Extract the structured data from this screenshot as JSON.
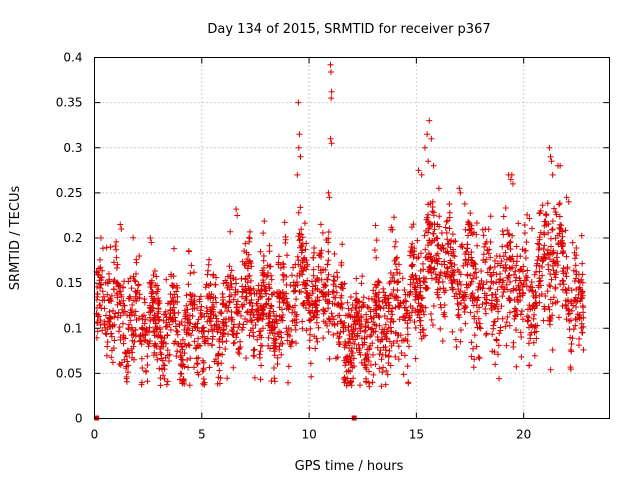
{
  "chart_data": {
    "type": "scatter",
    "title": "Day 134 of 2015, SRMTID for receiver p367",
    "xlabel": "GPS time / hours",
    "ylabel": "SRMTID / TECUs",
    "xlim": [
      0,
      24
    ],
    "ylim": [
      0,
      0.4
    ],
    "xticks": [
      0,
      5,
      10,
      15,
      20
    ],
    "yticks": [
      0,
      0.05,
      0.1,
      0.15,
      0.2,
      0.25,
      0.3,
      0.35,
      0.4
    ],
    "xtick_labels": [
      "0",
      "5",
      "10",
      "15",
      "20"
    ],
    "ytick_labels": [
      "0",
      "0.05",
      "0.1",
      "0.15",
      "0.2",
      "0.25",
      "0.3",
      "0.35",
      "0.4"
    ],
    "grid": true,
    "marker": "plus",
    "color": "#dd0000",
    "zero_markers": [
      0.1,
      12.1
    ],
    "trend": [
      [
        0.0,
        0.12
      ],
      [
        0.5,
        0.13
      ],
      [
        1.0,
        0.12
      ],
      [
        2.0,
        0.11
      ],
      [
        3.0,
        0.1
      ],
      [
        4.0,
        0.1
      ],
      [
        5.0,
        0.1
      ],
      [
        6.0,
        0.11
      ],
      [
        7.0,
        0.13
      ],
      [
        8.0,
        0.12
      ],
      [
        9.0,
        0.12
      ],
      [
        9.5,
        0.16
      ],
      [
        10.0,
        0.13
      ],
      [
        11.0,
        0.14
      ],
      [
        11.5,
        0.1
      ],
      [
        12.0,
        0.09
      ],
      [
        13.0,
        0.1
      ],
      [
        14.0,
        0.11
      ],
      [
        15.0,
        0.14
      ],
      [
        15.5,
        0.17
      ],
      [
        16.0,
        0.18
      ],
      [
        17.0,
        0.16
      ],
      [
        18.0,
        0.15
      ],
      [
        19.0,
        0.14
      ],
      [
        19.5,
        0.16
      ],
      [
        20.0,
        0.13
      ],
      [
        21.0,
        0.17
      ],
      [
        21.5,
        0.18
      ],
      [
        22.0,
        0.15
      ],
      [
        22.5,
        0.12
      ],
      [
        22.8,
        0.1
      ]
    ],
    "spread": [
      [
        0.0,
        0.045
      ],
      [
        1.0,
        0.05
      ],
      [
        3.0,
        0.045
      ],
      [
        6.0,
        0.05
      ],
      [
        8.0,
        0.05
      ],
      [
        10.0,
        0.05
      ],
      [
        12.0,
        0.05
      ],
      [
        15.0,
        0.055
      ],
      [
        17.0,
        0.06
      ],
      [
        19.0,
        0.06
      ],
      [
        21.0,
        0.065
      ],
      [
        22.8,
        0.05
      ]
    ],
    "peaks": [
      [
        9.5,
        0.35
      ],
      [
        9.52,
        0.3
      ],
      [
        9.45,
        0.27
      ],
      [
        9.55,
        0.315
      ],
      [
        9.6,
        0.29
      ],
      [
        11.0,
        0.392
      ],
      [
        11.02,
        0.384
      ],
      [
        11.05,
        0.362
      ],
      [
        11.03,
        0.355
      ],
      [
        11.0,
        0.31
      ],
      [
        11.05,
        0.305
      ],
      [
        10.9,
        0.25
      ],
      [
        10.95,
        0.245
      ],
      [
        15.6,
        0.33
      ],
      [
        15.5,
        0.315
      ],
      [
        15.7,
        0.31
      ],
      [
        15.4,
        0.3
      ],
      [
        15.8,
        0.28
      ],
      [
        15.55,
        0.285
      ],
      [
        15.1,
        0.275
      ],
      [
        15.25,
        0.27
      ],
      [
        16.05,
        0.255
      ],
      [
        17.0,
        0.255
      ],
      [
        17.05,
        0.25
      ],
      [
        19.3,
        0.27
      ],
      [
        19.4,
        0.265
      ],
      [
        19.5,
        0.26
      ],
      [
        19.45,
        0.27
      ],
      [
        21.2,
        0.3
      ],
      [
        21.25,
        0.29
      ],
      [
        21.3,
        0.285
      ],
      [
        21.35,
        0.27
      ],
      [
        21.6,
        0.28
      ],
      [
        21.7,
        0.28
      ],
      [
        20.8,
        0.23
      ],
      [
        22.1,
        0.24
      ],
      [
        22.0,
        0.245
      ],
      [
        6.6,
        0.232
      ],
      [
        6.65,
        0.225
      ],
      [
        0.3,
        0.2
      ],
      [
        1.2,
        0.215
      ],
      [
        1.25,
        0.21
      ],
      [
        2.6,
        0.2
      ],
      [
        2.65,
        0.195
      ],
      [
        4.4,
        0.185
      ]
    ],
    "point_count": 2600,
    "seed": 134
  }
}
